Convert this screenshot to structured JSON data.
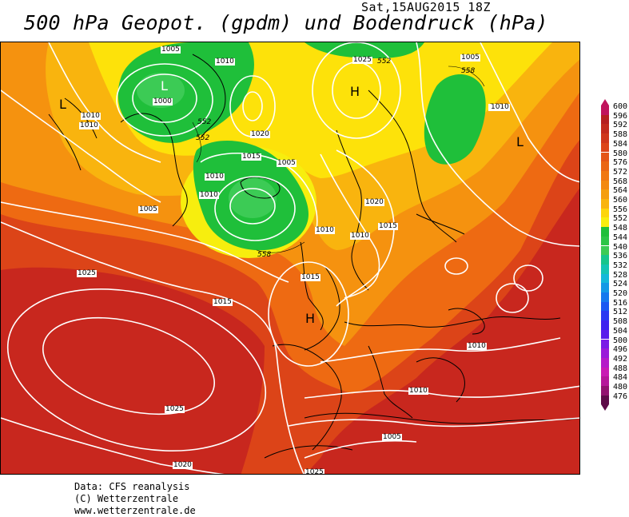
{
  "header": {
    "date": "Sat,15AUG2015 18Z",
    "title": "500 hPa Geopot. (gpdm) und Bodendruck (hPa)"
  },
  "map": {
    "colors": {
      "deep_red": "#b51f20",
      "red": "#cc2e1c",
      "red_orange": "#dd4a17",
      "orange": "#ee6a12",
      "light_orange": "#f5920f",
      "amber": "#f9b40e",
      "yellow": "#fde20a",
      "green": "#1fc03c",
      "light_green": "#5ed35a",
      "isobar": "#ffffff",
      "coast": "#000000"
    },
    "pressure_centers": [
      {
        "id": "L-west",
        "label": "L"
      },
      {
        "id": "L-iceland",
        "label": "L"
      },
      {
        "id": "L-east",
        "label": "L"
      },
      {
        "id": "H-north",
        "label": "H"
      },
      {
        "id": "H-biscay",
        "label": "H"
      }
    ],
    "isobar_labels": [
      "1005",
      "1010",
      "1000",
      "1010",
      "1010",
      "552",
      "552",
      "1020",
      "1015",
      "1005",
      "1010",
      "1010",
      "1005",
      "1025",
      "552",
      "1010",
      "1005",
      "558",
      "1010",
      "1020",
      "1015",
      "1010",
      "1010",
      "558",
      "1015",
      "1025",
      "1015",
      "1025",
      "1020",
      "1010",
      "1010",
      "1005",
      "1025"
    ]
  },
  "legend": {
    "units": "gpdm",
    "levels": [
      {
        "value": "600",
        "color": "#c0135c"
      },
      {
        "value": "596",
        "color": "#b51f20"
      },
      {
        "value": "592",
        "color": "#c22a1d"
      },
      {
        "value": "588",
        "color": "#cf361b"
      },
      {
        "value": "584",
        "color": "#dc4418"
      },
      {
        "value": "580",
        "color": "#e45516"
      },
      {
        "value": "576",
        "color": "#ea6614"
      },
      {
        "value": "572",
        "color": "#f07712"
      },
      {
        "value": "568",
        "color": "#f38910"
      },
      {
        "value": "564",
        "color": "#f59e0f"
      },
      {
        "value": "560",
        "color": "#f9b40e"
      },
      {
        "value": "556",
        "color": "#fdd50c"
      },
      {
        "value": "552",
        "color": "#f7ee0e"
      },
      {
        "value": "548",
        "color": "#1fbf3a"
      },
      {
        "value": "544",
        "color": "#2cc547"
      },
      {
        "value": "540",
        "color": "#3ccb55"
      },
      {
        "value": "536",
        "color": "#17c58c"
      },
      {
        "value": "532",
        "color": "#14c4b4"
      },
      {
        "value": "528",
        "color": "#13b8d9"
      },
      {
        "value": "524",
        "color": "#1399e6"
      },
      {
        "value": "520",
        "color": "#1578ee"
      },
      {
        "value": "516",
        "color": "#1a57f2"
      },
      {
        "value": "512",
        "color": "#2a3af2"
      },
      {
        "value": "508",
        "color": "#3d22ef"
      },
      {
        "value": "504",
        "color": "#5a1deb"
      },
      {
        "value": "500",
        "color": "#7a1be6"
      },
      {
        "value": "496",
        "color": "#9a1ad9"
      },
      {
        "value": "492",
        "color": "#b51ac8"
      },
      {
        "value": "488",
        "color": "#c91ab4"
      },
      {
        "value": "484",
        "color": "#b6169a"
      },
      {
        "value": "480",
        "color": "#92126f"
      },
      {
        "value": "476",
        "color": "#5e0b48"
      }
    ]
  },
  "credits": {
    "line1": "Data: CFS reanalysis",
    "line2": "(C) Wetterzentrale",
    "line3": "www.wetterzentrale.de"
  }
}
